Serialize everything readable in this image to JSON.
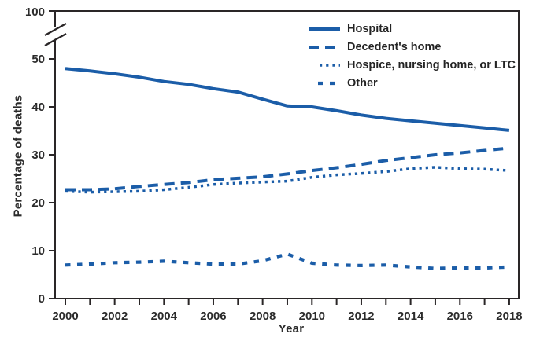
{
  "chart_data": {
    "type": "line",
    "title": "",
    "xlabel": "Year",
    "ylabel": "Percentage of deaths",
    "x": [
      2000,
      2001,
      2002,
      2003,
      2004,
      2005,
      2006,
      2007,
      2008,
      2009,
      2010,
      2011,
      2012,
      2013,
      2014,
      2015,
      2016,
      2017,
      2018
    ],
    "xtick_labeled_years": [
      2000,
      2002,
      2004,
      2006,
      2008,
      2010,
      2012,
      2014,
      2016,
      2018
    ],
    "yticks": [
      0,
      10,
      20,
      30,
      40,
      50
    ],
    "ytick_break_label": "100",
    "axis_break": "y-axis broken between 50 and 100",
    "ylim": [
      0,
      100
    ],
    "grid": "off",
    "legend_position": "upper-right-inside",
    "series": [
      {
        "name": "Hospital",
        "style": "solid",
        "values": [
          48.0,
          47.5,
          46.9,
          46.2,
          45.3,
          44.7,
          43.8,
          43.1,
          41.6,
          40.2,
          40.0,
          39.2,
          38.3,
          37.6,
          37.1,
          36.6,
          36.1,
          35.6,
          35.1
        ]
      },
      {
        "name": "Decedent's home",
        "style": "dashed",
        "values": [
          22.7,
          22.7,
          22.9,
          23.4,
          23.8,
          24.2,
          24.8,
          25.1,
          25.4,
          26.0,
          26.7,
          27.3,
          28.0,
          28.8,
          29.4,
          30.0,
          30.4,
          30.9,
          31.4
        ]
      },
      {
        "name": "Hospice, nursing home, or LTC",
        "style": "dotted",
        "values": [
          22.4,
          22.2,
          22.3,
          22.4,
          22.7,
          23.2,
          23.8,
          24.1,
          24.3,
          24.5,
          25.3,
          25.8,
          26.1,
          26.5,
          27.1,
          27.4,
          27.1,
          27.0,
          26.7
        ]
      },
      {
        "name": "Other",
        "style": "square-dash",
        "values": [
          7.0,
          7.2,
          7.5,
          7.6,
          7.8,
          7.5,
          7.2,
          7.2,
          7.9,
          9.3,
          7.4,
          7.0,
          6.9,
          7.0,
          6.6,
          6.3,
          6.4,
          6.4,
          6.6
        ]
      }
    ],
    "colors": {
      "line_blue": "#1b5da8",
      "axis": "#2a2627",
      "text": "#2b2b2b"
    }
  }
}
